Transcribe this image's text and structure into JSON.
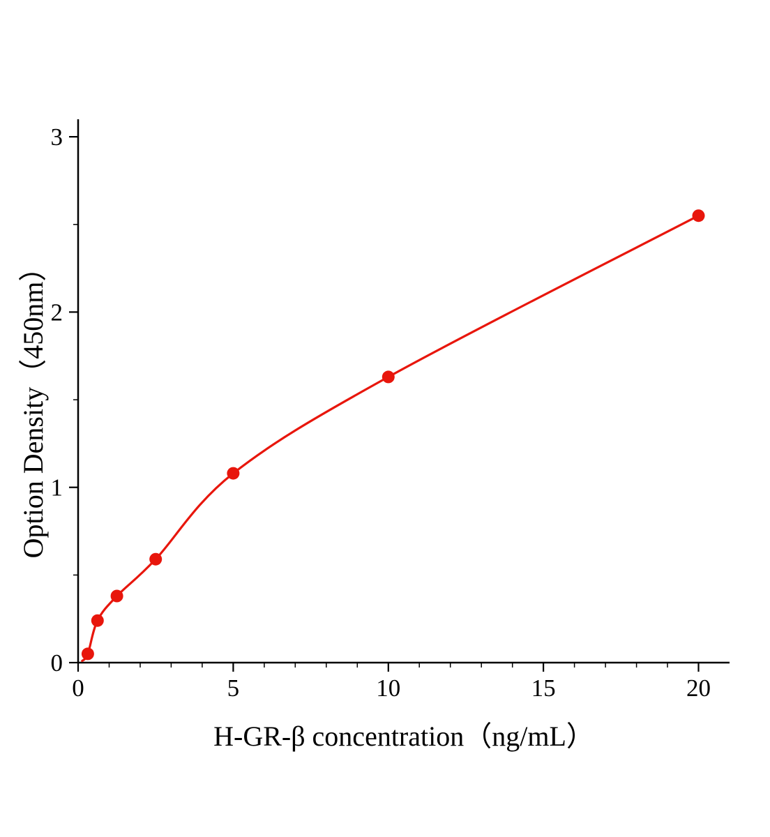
{
  "figure": {
    "background_color": "#ffffff",
    "kind": "ELISA standard curve"
  },
  "chart_data": {
    "type": "line",
    "x": [
      0.3125,
      0.625,
      1.25,
      2.5,
      5,
      10,
      20
    ],
    "y": [
      0.05,
      0.24,
      0.38,
      0.59,
      1.08,
      1.63,
      2.55
    ],
    "curve_start": [
      0.13,
      0.01
    ],
    "title": "",
    "xlabel": "H-GR-β concentration（ng/mL）",
    "ylabel": "Option Density（450nm）",
    "xlim": [
      0,
      21
    ],
    "ylim": [
      0,
      3.1
    ],
    "x_ticks": [
      0,
      5,
      10,
      15,
      20
    ],
    "y_ticks": [
      0,
      1,
      2,
      3
    ],
    "x_minor_step": 1,
    "y_minor_step": 0.5,
    "grid": false,
    "legend_position": "none",
    "line_color": "#e8160c",
    "marker_color": "#e8160c",
    "marker_shape": "circle",
    "axis_color": "#000000"
  }
}
